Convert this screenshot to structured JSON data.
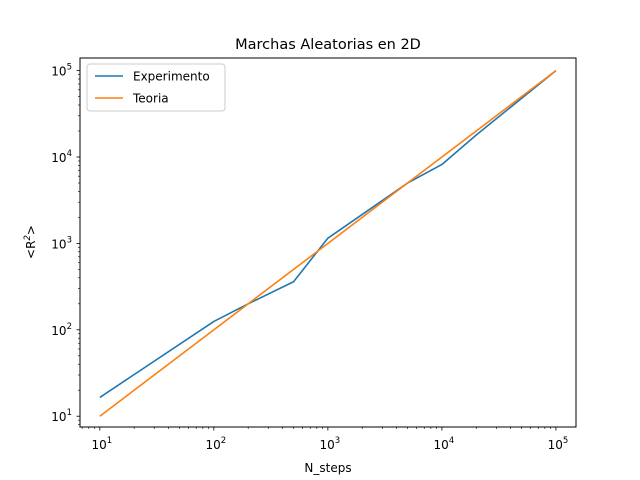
{
  "chart_data": {
    "type": "line",
    "title": "Marchas Aleatorias en 2D",
    "xlabel": "N_steps",
    "ylabel_base": "<R",
    "ylabel_exp": "2",
    "ylabel_tail": ">",
    "xscale": "log",
    "yscale": "log",
    "xlim": [
      6.7,
      150000
    ],
    "ylim": [
      7.5,
      140000
    ],
    "legend_position": "top-left",
    "grid": false,
    "x_ticks": [
      {
        "value": 10,
        "base": "10",
        "exp": "1"
      },
      {
        "value": 100,
        "base": "10",
        "exp": "2"
      },
      {
        "value": 1000,
        "base": "10",
        "exp": "3"
      },
      {
        "value": 10000,
        "base": "10",
        "exp": "4"
      },
      {
        "value": 100000,
        "base": "10",
        "exp": "5"
      }
    ],
    "y_ticks": [
      {
        "value": 10,
        "base": "10",
        "exp": "1"
      },
      {
        "value": 100,
        "base": "10",
        "exp": "2"
      },
      {
        "value": 1000,
        "base": "10",
        "exp": "3"
      },
      {
        "value": 10000,
        "base": "10",
        "exp": "4"
      },
      {
        "value": 100000,
        "base": "10",
        "exp": "5"
      }
    ],
    "series": [
      {
        "name": "Experimento",
        "color": "#1f77b4",
        "x": [
          10,
          100,
          200,
          500,
          1000,
          5000,
          10000,
          20000,
          100000
        ],
        "y": [
          16.5,
          125,
          200,
          360,
          1150,
          5000,
          8200,
          18000,
          100000
        ]
      },
      {
        "name": "Teoria",
        "color": "#ff7f0e",
        "x": [
          10,
          100000
        ],
        "y": [
          10,
          100000
        ]
      }
    ]
  }
}
